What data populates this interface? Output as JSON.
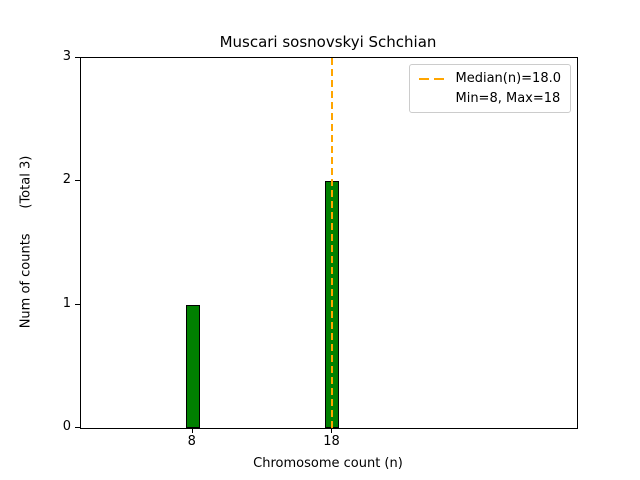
{
  "chart_data": {
    "type": "bar",
    "title": "Muscari sosnovskyi Schchian",
    "xlabel": "Chromosome count (n)",
    "ylabel": "Num of counts      (Total 3)",
    "x": [
      8,
      18
    ],
    "values": [
      1,
      2
    ],
    "total_counts": 3,
    "median": 18.0,
    "min": 8,
    "max": 18,
    "xlim": [
      0,
      35.5
    ],
    "ylim": [
      0,
      3
    ],
    "xtick_values": [
      8,
      18
    ],
    "xtick_labels": [
      "8",
      "18"
    ],
    "ytick_values": [
      0,
      1,
      2,
      3
    ],
    "ytick_labels": [
      "0",
      "1",
      "2",
      "3"
    ],
    "bar_color": "#008000",
    "bar_edge_color": "#000000",
    "median_line_color": "#FFA500",
    "grid": false,
    "legend": {
      "position": "upper right",
      "entries": [
        {
          "label": "Median(n)=18.0",
          "style": "dashed-line"
        },
        {
          "label": "Min=8, Max=18",
          "style": "none"
        }
      ]
    }
  }
}
